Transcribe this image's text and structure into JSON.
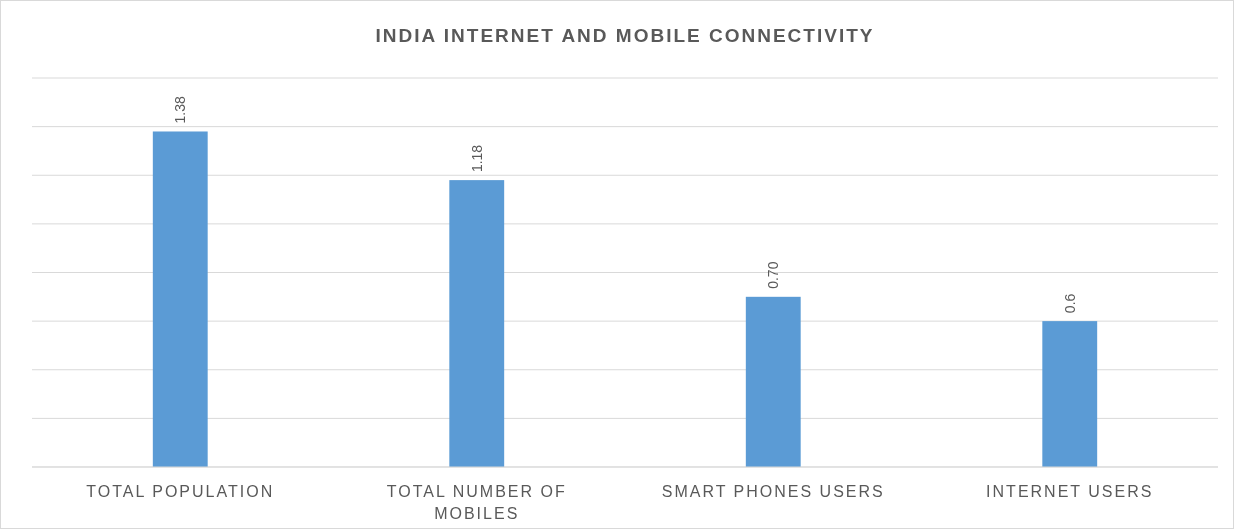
{
  "chart_data": {
    "type": "bar",
    "title": "INDIA INTERNET AND MOBILE CONNECTIVITY",
    "categories": [
      "TOTAL POPULATION",
      "TOTAL NUMBER OF MOBILES",
      "SMART PHONES USERS",
      "INTERNET USERS"
    ],
    "values": [
      1.38,
      1.18,
      0.7,
      0.6
    ],
    "value_labels": [
      "1.38",
      "1.18",
      "0.70",
      "0.6"
    ],
    "color": "#5b9bd5",
    "ylim": [
      0,
      1.6
    ],
    "yticks": [
      {
        "value": 0,
        "label": null
      },
      {
        "value": 0.2,
        "label": null
      },
      {
        "value": 0.4,
        "label": null
      },
      {
        "value": 0.6,
        "label": null
      },
      {
        "value": 0.8,
        "label": null
      },
      {
        "value": 1.0,
        "label": null
      },
      {
        "value": 1.2,
        "label": null
      },
      {
        "value": 1.4,
        "label": null
      },
      {
        "value": 1.6,
        "label": null
      }
    ],
    "tick_labels": "x",
    "grid": "y"
  }
}
